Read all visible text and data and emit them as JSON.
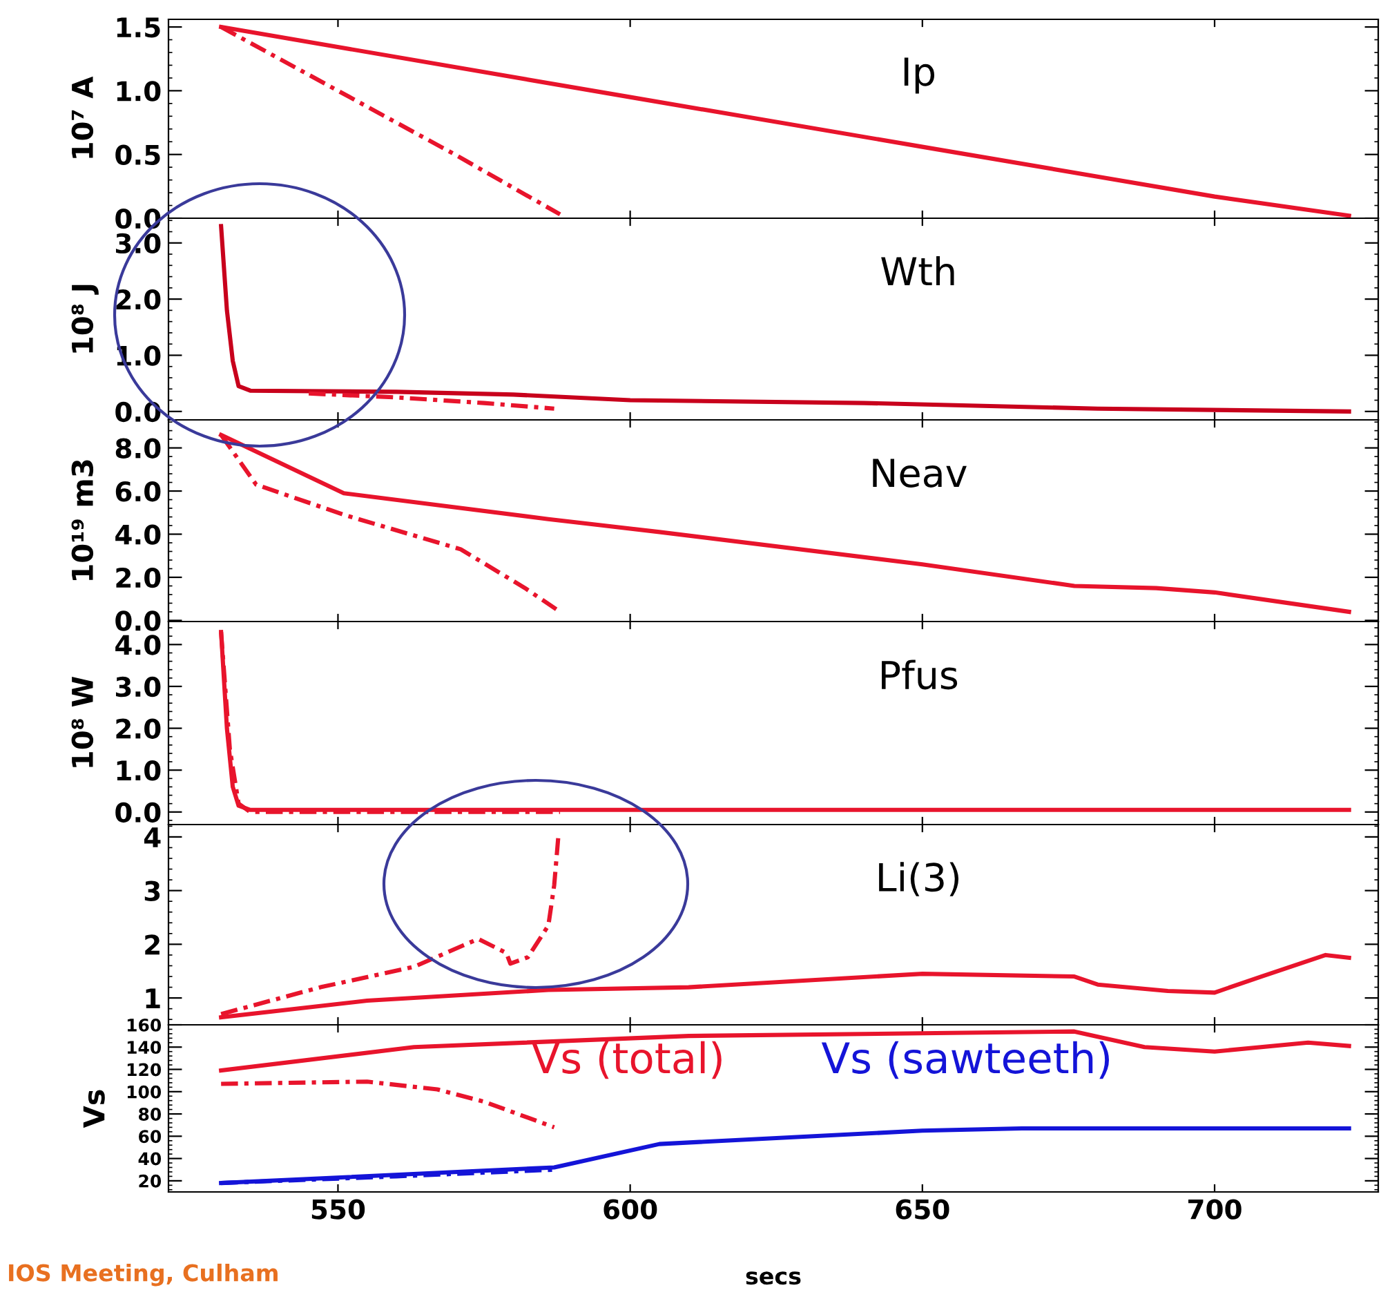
{
  "chart_data": [
    {
      "type": "line",
      "title": "Ip",
      "ylabel": "10⁷ A",
      "xlim": [
        521,
        728
      ],
      "xticks": [
        550,
        600,
        650,
        700
      ],
      "ylim": [
        0,
        1.56
      ],
      "yticks": [
        {
          "value": 0,
          "label": "0.0"
        },
        {
          "value": 0.5,
          "label": "0.5"
        },
        {
          "value": 1,
          "label": "1.0"
        },
        {
          "value": 1.5,
          "label": "1.5"
        }
      ],
      "tick_labels": "y",
      "legend": false,
      "series": [
        {
          "color": "#e8142c",
          "line_style": "solid",
          "x": [
            530,
            600,
            650,
            700,
            723
          ],
          "values": [
            1.5,
            0.95,
            0.56,
            0.17,
            0.02
          ]
        },
        {
          "color": "#e8142c",
          "line_style": "dashed",
          "x": [
            530,
            550,
            570,
            588
          ],
          "values": [
            1.5,
            1.0,
            0.5,
            0.03
          ]
        }
      ]
    },
    {
      "type": "line",
      "title": "Wth",
      "ylabel": "10⁸ J",
      "xlim": [
        521,
        728
      ],
      "xticks": [
        550,
        600,
        650,
        700
      ],
      "ylim": [
        -0.15,
        3.44
      ],
      "yticks": [
        {
          "value": 0,
          "label": "0.0"
        },
        {
          "value": 1,
          "label": "1.0"
        },
        {
          "value": 2,
          "label": "2.0"
        },
        {
          "value": 3,
          "label": "3.0"
        }
      ],
      "tick_labels": "y",
      "legend": false,
      "series": [
        {
          "color": "#c8001c",
          "line_style": "solid",
          "x": [
            530,
            531,
            532,
            533,
            535,
            560,
            580,
            600,
            640,
            680,
            723
          ],
          "values": [
            3.3,
            1.8,
            0.9,
            0.45,
            0.37,
            0.35,
            0.3,
            0.2,
            0.15,
            0.05,
            0.0
          ]
        },
        {
          "color": "#e8142c",
          "line_style": "dashed",
          "x": [
            545,
            560,
            575,
            587
          ],
          "values": [
            0.32,
            0.25,
            0.15,
            0.05
          ]
        }
      ]
    },
    {
      "type": "line",
      "title": "Neav",
      "ylabel": "10¹⁹ m3",
      "xlim": [
        521,
        728
      ],
      "xticks": [
        550,
        600,
        650,
        700
      ],
      "ylim": [
        -0.05,
        9.3
      ],
      "yticks": [
        {
          "value": 0,
          "label": "0.0"
        },
        {
          "value": 2,
          "label": "2.0"
        },
        {
          "value": 4,
          "label": "4.0"
        },
        {
          "value": 6,
          "label": "6.0"
        },
        {
          "value": 8,
          "label": "8.0"
        }
      ],
      "tick_labels": "y",
      "legend": false,
      "series": [
        {
          "color": "#e8142c",
          "line_style": "solid",
          "x": [
            530,
            551,
            586,
            605,
            650,
            676,
            690,
            700,
            723
          ],
          "values": [
            8.6,
            5.9,
            4.7,
            4.1,
            2.6,
            1.6,
            1.5,
            1.3,
            0.4
          ]
        },
        {
          "color": "#e8142c",
          "line_style": "dashed",
          "x": [
            530,
            536,
            551,
            571,
            582,
            588
          ],
          "values": [
            8.6,
            6.3,
            4.9,
            3.3,
            1.5,
            0.4
          ]
        }
      ]
    },
    {
      "type": "line",
      "title": "Pfus",
      "ylabel": "10⁸ W",
      "xlim": [
        521,
        728
      ],
      "xticks": [
        550,
        600,
        650,
        700
      ],
      "ylim": [
        -0.3,
        4.55
      ],
      "yticks": [
        {
          "value": 0,
          "label": "0.0"
        },
        {
          "value": 1,
          "label": "1.0"
        },
        {
          "value": 2,
          "label": "2.0"
        },
        {
          "value": 3,
          "label": "3.0"
        },
        {
          "value": 4,
          "label": "4.0"
        }
      ],
      "tick_labels": "y",
      "legend": false,
      "series": [
        {
          "color": "#e8142c",
          "line_style": "solid",
          "x": [
            530,
            531,
            532,
            533,
            535,
            723
          ],
          "values": [
            4.3,
            2.0,
            0.6,
            0.15,
            0.05,
            0.05
          ]
        },
        {
          "color": "#e8142c",
          "line_style": "dashed",
          "x": [
            530,
            531.5,
            533,
            535,
            588
          ],
          "values": [
            4.3,
            1.5,
            0.2,
            0.0,
            0.0
          ]
        }
      ]
    },
    {
      "type": "line",
      "title": "Li(3)",
      "xlim": [
        521,
        728
      ],
      "xticks": [
        550,
        600,
        650,
        700
      ],
      "ylim": [
        0.5,
        4.23
      ],
      "yticks": [
        1,
        2,
        3,
        4
      ],
      "tick_labels": "y",
      "legend": false,
      "series": [
        {
          "color": "#e8142c",
          "line_style": "solid",
          "x": [
            530,
            555,
            586,
            610,
            650,
            676,
            680,
            692,
            700,
            708,
            719,
            723
          ],
          "values": [
            0.64,
            0.95,
            1.15,
            1.2,
            1.45,
            1.4,
            1.25,
            1.13,
            1.1,
            1.4,
            1.8,
            1.75
          ]
        },
        {
          "color": "#e8142c",
          "line_style": "dashed",
          "x": [
            530,
            547,
            563,
            574,
            578.8,
            579.5,
            582.5,
            586,
            587,
            587.7
          ],
          "values": [
            0.7,
            1.2,
            1.58,
            2.1,
            1.84,
            1.64,
            1.76,
            2.35,
            3.1,
            4.0
          ]
        }
      ]
    },
    {
      "type": "line",
      "ylabel": "Vs",
      "xlabel": "secs",
      "xlim": [
        521,
        728
      ],
      "xticks": [
        550,
        600,
        650,
        700
      ],
      "ylim": [
        10,
        160
      ],
      "yticks": [
        20,
        40,
        60,
        80,
        100,
        120,
        140,
        160
      ],
      "legend": false,
      "annotations": [
        "IOS Meeting, Culham"
      ],
      "series": [
        {
          "name": "Vs (total)",
          "color": "#e8142c",
          "line_style": "solid",
          "x": [
            530,
            563,
            610,
            676,
            688,
            700,
            716,
            723
          ],
          "values": [
            119,
            140,
            150,
            154,
            140,
            136,
            144,
            141
          ]
        },
        {
          "color": "#e8142c",
          "line_style": "dashed",
          "x": [
            530,
            555,
            567,
            575,
            587
          ],
          "values": [
            107,
            109,
            102,
            91,
            68
          ]
        },
        {
          "name": "Vs (sawteeth)",
          "color": "#1414d8",
          "line_style": "solid",
          "x": [
            530,
            587,
            605,
            650,
            667,
            723
          ],
          "values": [
            18,
            32,
            53,
            65,
            67,
            67
          ]
        },
        {
          "color": "#1414d8",
          "line_style": "dashed",
          "x": [
            530,
            560,
            587
          ],
          "values": [
            18,
            24,
            30
          ]
        }
      ]
    }
  ]
}
